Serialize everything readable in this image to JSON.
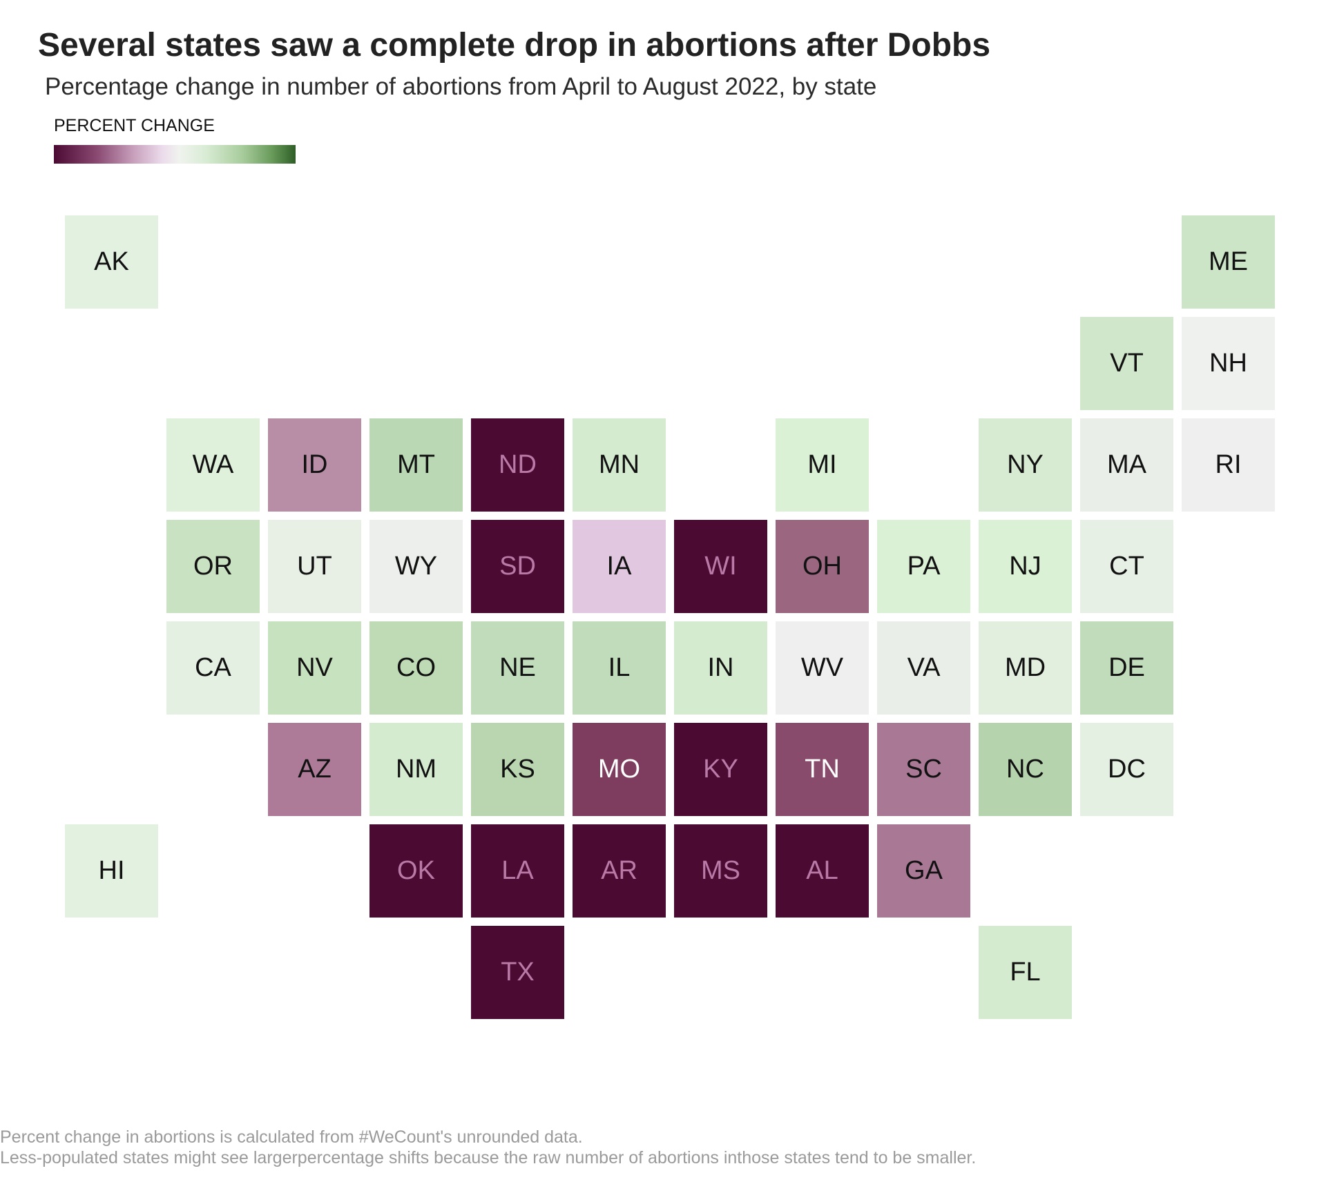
{
  "chart_data": {
    "type": "heatmap",
    "title": "Several states saw a complete drop in abortions after Dobbs",
    "subtitle": "Percentage change in number of abortions from April to August 2022, by state",
    "legend": {
      "title": "PERCENT CHANGE",
      "placement": "top-left",
      "colorscale": [
        "#4a0a33",
        "#8a4a72",
        "#c8a0bc",
        "#ecdcec",
        "#f0f3ee",
        "#d8ecd4",
        "#a8cc9c",
        "#6a9c5c",
        "#2e5e26"
      ]
    },
    "tiles": [
      {
        "state": "AK",
        "col": 0,
        "row": 0,
        "color": "#e3f1e0"
      },
      {
        "state": "ME",
        "col": 11,
        "row": 0,
        "color": "#cde5c7"
      },
      {
        "state": "VT",
        "col": 10,
        "row": 1,
        "color": "#d1e7cc"
      },
      {
        "state": "NH",
        "col": 11,
        "row": 1,
        "color": "#eff1ef"
      },
      {
        "state": "WA",
        "col": 1,
        "row": 2,
        "color": "#dff1da"
      },
      {
        "state": "ID",
        "col": 2,
        "row": 2,
        "color": "#b88ea6"
      },
      {
        "state": "MT",
        "col": 3,
        "row": 2,
        "color": "#bad8b3"
      },
      {
        "state": "ND",
        "col": 4,
        "row": 2,
        "color": "#4b0a32"
      },
      {
        "state": "MN",
        "col": 5,
        "row": 2,
        "color": "#d5ebd0"
      },
      {
        "state": "MI",
        "col": 7,
        "row": 2,
        "color": "#daf1d6"
      },
      {
        "state": "NY",
        "col": 9,
        "row": 2,
        "color": "#d6ebd1"
      },
      {
        "state": "MA",
        "col": 10,
        "row": 2,
        "color": "#e9efe8"
      },
      {
        "state": "RI",
        "col": 11,
        "row": 2,
        "color": "#efefef"
      },
      {
        "state": "OR",
        "col": 1,
        "row": 3,
        "color": "#c9e2c2"
      },
      {
        "state": "UT",
        "col": 2,
        "row": 3,
        "color": "#e8f0e6"
      },
      {
        "state": "WY",
        "col": 3,
        "row": 3,
        "color": "#ecefeb"
      },
      {
        "state": "SD",
        "col": 4,
        "row": 3,
        "color": "#4b0a32"
      },
      {
        "state": "IA",
        "col": 5,
        "row": 3,
        "color": "#e1c7df"
      },
      {
        "state": "WI",
        "col": 6,
        "row": 3,
        "color": "#4b0a32"
      },
      {
        "state": "OH",
        "col": 7,
        "row": 3,
        "color": "#9a6680"
      },
      {
        "state": "PA",
        "col": 8,
        "row": 3,
        "color": "#dbf1d6"
      },
      {
        "state": "NJ",
        "col": 9,
        "row": 3,
        "color": "#daf1d5"
      },
      {
        "state": "CT",
        "col": 10,
        "row": 3,
        "color": "#e6f0e4"
      },
      {
        "state": "CA",
        "col": 1,
        "row": 4,
        "color": "#e4f0e1"
      },
      {
        "state": "NV",
        "col": 2,
        "row": 4,
        "color": "#c6e2be"
      },
      {
        "state": "CO",
        "col": 3,
        "row": 4,
        "color": "#bedbb6"
      },
      {
        "state": "NE",
        "col": 4,
        "row": 4,
        "color": "#c1dcba"
      },
      {
        "state": "IL",
        "col": 5,
        "row": 4,
        "color": "#c1dcba"
      },
      {
        "state": "IN",
        "col": 6,
        "row": 4,
        "color": "#d5ebd0"
      },
      {
        "state": "WV",
        "col": 7,
        "row": 4,
        "color": "#efefef"
      },
      {
        "state": "VA",
        "col": 8,
        "row": 4,
        "color": "#e9efe8"
      },
      {
        "state": "MD",
        "col": 9,
        "row": 4,
        "color": "#e2efdf"
      },
      {
        "state": "DE",
        "col": 10,
        "row": 4,
        "color": "#c1dcba"
      },
      {
        "state": "AZ",
        "col": 2,
        "row": 5,
        "color": "#ad7b98"
      },
      {
        "state": "NM",
        "col": 3,
        "row": 5,
        "color": "#d5ebd0"
      },
      {
        "state": "KS",
        "col": 4,
        "row": 5,
        "color": "#b9d6b1"
      },
      {
        "state": "MO",
        "col": 5,
        "row": 5,
        "color": "#7e3d5e"
      },
      {
        "state": "KY",
        "col": 6,
        "row": 5,
        "color": "#4b0a32"
      },
      {
        "state": "TN",
        "col": 7,
        "row": 5,
        "color": "#884b6b"
      },
      {
        "state": "SC",
        "col": 8,
        "row": 5,
        "color": "#a97895"
      },
      {
        "state": "NC",
        "col": 9,
        "row": 5,
        "color": "#b5d4ae"
      },
      {
        "state": "DC",
        "col": 10,
        "row": 5,
        "color": "#e4f0e1"
      },
      {
        "state": "HI",
        "col": 0,
        "row": 6,
        "color": "#e3f1e0"
      },
      {
        "state": "OK",
        "col": 3,
        "row": 6,
        "color": "#4b0a32"
      },
      {
        "state": "LA",
        "col": 4,
        "row": 6,
        "color": "#4b0a32"
      },
      {
        "state": "AR",
        "col": 5,
        "row": 6,
        "color": "#4b0a32"
      },
      {
        "state": "MS",
        "col": 6,
        "row": 6,
        "color": "#4b0a32"
      },
      {
        "state": "AL",
        "col": 7,
        "row": 6,
        "color": "#4b0a32"
      },
      {
        "state": "GA",
        "col": 8,
        "row": 6,
        "color": "#a97895"
      },
      {
        "state": "TX",
        "col": 4,
        "row": 7,
        "color": "#4b0a32"
      },
      {
        "state": "FL",
        "col": 9,
        "row": 7,
        "color": "#d5ebd0"
      }
    ],
    "notes": [
      "Percent change in abortions is calculated from #WeCount's unrounded data.",
      "Less-populated states might see largerpercentage shifts because the raw number of abortions inthose states tend to be smaller."
    ]
  }
}
